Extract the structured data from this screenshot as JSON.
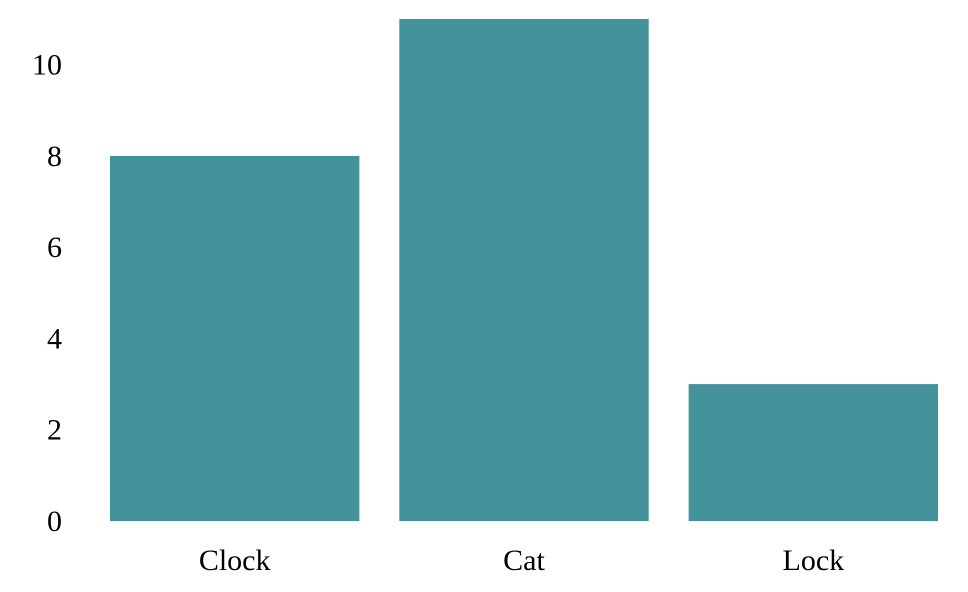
{
  "chart_data": {
    "type": "bar",
    "categories": [
      "Clock",
      "Cat",
      "Lock"
    ],
    "values": [
      8,
      11,
      3
    ],
    "ylim": [
      0,
      11
    ],
    "yticks": [
      0,
      2,
      4,
      6,
      8,
      10
    ],
    "ytick_labels": [
      "0",
      "2",
      "4",
      "6",
      "8",
      "10"
    ],
    "grid": false,
    "legend": "none",
    "bar_color": "#44929a",
    "title": "",
    "xlabel": "",
    "ylabel": ""
  }
}
